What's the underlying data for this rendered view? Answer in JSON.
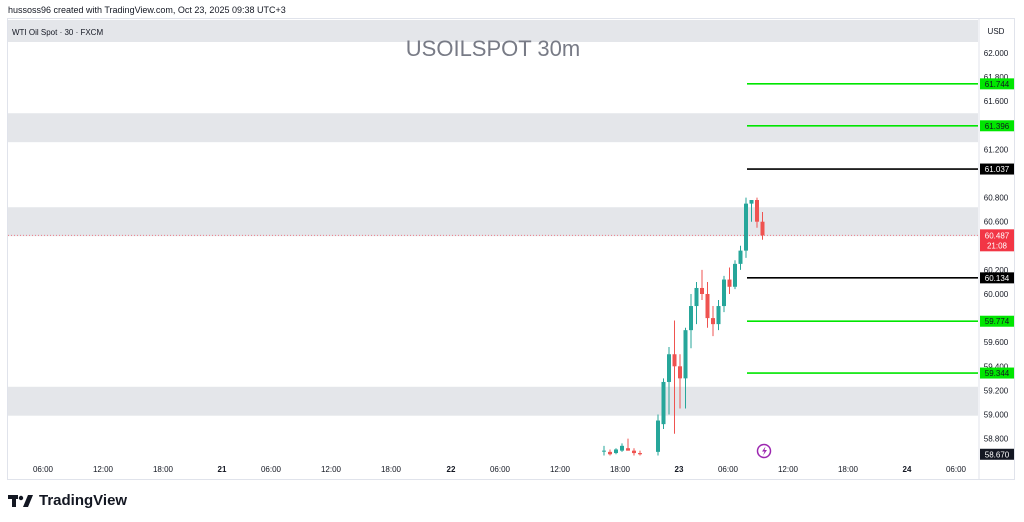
{
  "header": {
    "attribution": "hussoss96 created with TradingView.com, Oct 23, 2025 09:38 UTC+3"
  },
  "symbol_label": "WTI Oil Spot · 30 · FXCM",
  "watermark": "USOILSPOT 30m",
  "currency": "USD",
  "footer": {
    "brand": "TradingView"
  },
  "colors": {
    "up": "#26a69a",
    "down": "#ef5350",
    "support_resistance": "#00e600",
    "key_level": "#000000",
    "zone": "#e4e6ea",
    "last_price": "#f23645"
  },
  "chart_data": {
    "type": "candlestick",
    "title": "USOILSPOT 30m",
    "y_axis": {
      "range": [
        58.5,
        62.25
      ],
      "ticks": [
        "62.000",
        "61.800",
        "61.600",
        "61.200",
        "60.800",
        "60.600",
        "60.200",
        "60.000",
        "59.600",
        "59.400",
        "59.200",
        "59.000",
        "58.800"
      ]
    },
    "x_axis": {
      "ticks": [
        "06:00",
        "12:00",
        "18:00",
        "21",
        "06:00",
        "12:00",
        "18:00",
        "22",
        "06:00",
        "12:00",
        "18:00",
        "23",
        "06:00",
        "12:00",
        "18:00",
        "24",
        "06:00"
      ]
    },
    "zones": [
      {
        "from": 61.26,
        "to": 61.5
      },
      {
        "from": 60.48,
        "to": 60.72
      },
      {
        "from": 58.99,
        "to": 59.23
      }
    ],
    "levels": [
      {
        "value": 61.744,
        "label": "61.744",
        "kind": "green"
      },
      {
        "value": 61.396,
        "label": "61.396",
        "kind": "green"
      },
      {
        "value": 61.037,
        "label": "61.037",
        "kind": "black"
      },
      {
        "value": 60.134,
        "label": "60.134",
        "kind": "black"
      },
      {
        "value": 59.774,
        "label": "59.774",
        "kind": "green"
      },
      {
        "value": 59.344,
        "label": "59.344",
        "kind": "green"
      }
    ],
    "last_price": {
      "value": 60.487,
      "label": "60.487",
      "countdown": "21:08"
    },
    "low_marker": {
      "value": 58.67,
      "label": "58.670"
    },
    "candles": [
      {
        "o": 58.7,
        "h": 58.74,
        "l": 58.66,
        "c": 58.7
      },
      {
        "o": 58.69,
        "h": 58.71,
        "l": 58.66,
        "c": 58.67
      },
      {
        "o": 58.68,
        "h": 58.72,
        "l": 58.67,
        "c": 58.71
      },
      {
        "o": 58.7,
        "h": 58.76,
        "l": 58.69,
        "c": 58.74
      },
      {
        "o": 58.72,
        "h": 58.8,
        "l": 58.7,
        "c": 58.7
      },
      {
        "o": 58.7,
        "h": 58.72,
        "l": 58.66,
        "c": 58.68
      },
      {
        "o": 58.68,
        "h": 58.7,
        "l": 58.66,
        "c": 58.67
      },
      {
        "o": 58.69,
        "h": 59.0,
        "l": 58.66,
        "c": 58.95
      },
      {
        "o": 58.92,
        "h": 59.3,
        "l": 58.88,
        "c": 59.27
      },
      {
        "o": 59.27,
        "h": 59.56,
        "l": 59.0,
        "c": 59.5
      },
      {
        "o": 59.5,
        "h": 59.78,
        "l": 58.84,
        "c": 59.4
      },
      {
        "o": 59.4,
        "h": 59.5,
        "l": 59.05,
        "c": 59.3
      },
      {
        "o": 59.3,
        "h": 59.72,
        "l": 59.05,
        "c": 59.7
      },
      {
        "o": 59.7,
        "h": 60.0,
        "l": 59.55,
        "c": 59.9
      },
      {
        "o": 59.9,
        "h": 60.1,
        "l": 59.75,
        "c": 60.05
      },
      {
        "o": 60.05,
        "h": 60.2,
        "l": 59.95,
        "c": 60.0
      },
      {
        "o": 60.0,
        "h": 60.1,
        "l": 59.72,
        "c": 59.8
      },
      {
        "o": 59.8,
        "h": 59.9,
        "l": 59.65,
        "c": 59.75
      },
      {
        "o": 59.75,
        "h": 59.95,
        "l": 59.7,
        "c": 59.9
      },
      {
        "o": 59.9,
        "h": 60.15,
        "l": 59.85,
        "c": 60.12
      },
      {
        "o": 60.12,
        "h": 60.22,
        "l": 60.0,
        "c": 60.06
      },
      {
        "o": 60.06,
        "h": 60.28,
        "l": 60.04,
        "c": 60.25
      },
      {
        "o": 60.25,
        "h": 60.4,
        "l": 60.2,
        "c": 60.36
      },
      {
        "o": 60.36,
        "h": 60.8,
        "l": 60.3,
        "c": 60.75
      },
      {
        "o": 60.75,
        "h": 60.78,
        "l": 60.6,
        "c": 60.78
      },
      {
        "o": 60.78,
        "h": 60.8,
        "l": 60.55,
        "c": 60.6
      },
      {
        "o": 60.6,
        "h": 60.68,
        "l": 60.45,
        "c": 60.487
      }
    ]
  }
}
